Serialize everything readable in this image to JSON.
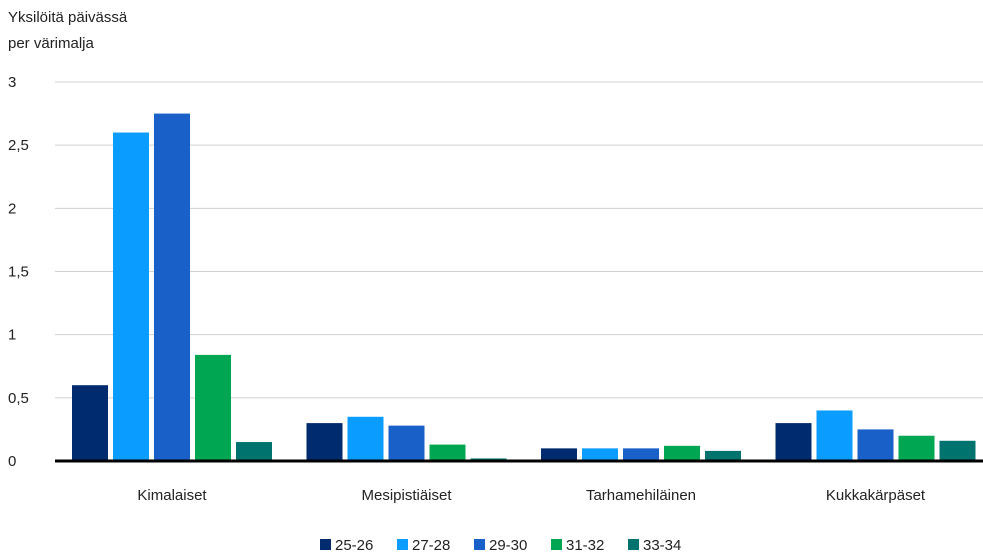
{
  "chart_data": {
    "type": "bar",
    "ylabel_lines": [
      "Yksilöitä päivässä",
      "per värimalja"
    ],
    "ylim": [
      0,
      3
    ],
    "yticks": [
      "0",
      "0,5",
      "1",
      "1,5",
      "2",
      "2,5",
      "3"
    ],
    "ytick_values": [
      0,
      0.5,
      1,
      1.5,
      2,
      2.5,
      3
    ],
    "grid": true,
    "legend_position": "bottom",
    "categories": [
      "Kimalaiset",
      "Mesipistiäiset",
      "Tarhamehiläinen",
      "Kukkakärpäset"
    ],
    "series": [
      {
        "name": "25-26",
        "color": "#002b6e",
        "values": [
          0.6,
          0.3,
          0.1,
          0.3
        ]
      },
      {
        "name": "27-28",
        "color": "#0a9cff",
        "values": [
          2.6,
          0.35,
          0.1,
          0.4
        ]
      },
      {
        "name": "29-30",
        "color": "#1960c8",
        "values": [
          2.75,
          0.28,
          0.1,
          0.25
        ]
      },
      {
        "name": "31-32",
        "color": "#00a651",
        "values": [
          0.84,
          0.13,
          0.12,
          0.2
        ]
      },
      {
        "name": "33-34",
        "color": "#00736e",
        "values": [
          0.15,
          0.02,
          0.08,
          0.16
        ]
      }
    ]
  }
}
